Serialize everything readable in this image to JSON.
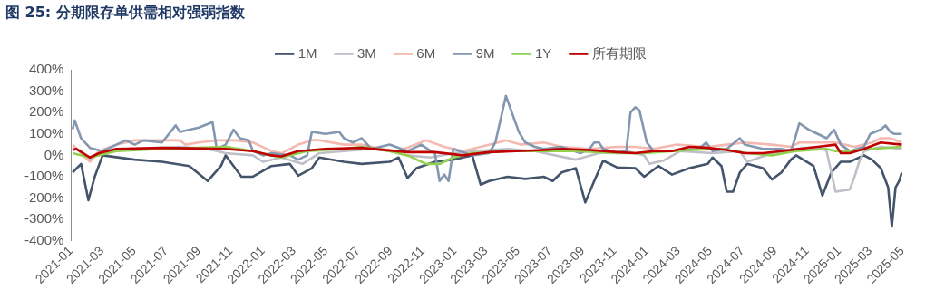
{
  "chart_data": {
    "type": "line",
    "title": "图 25: 分期限存单供需相对强弱指数",
    "legend": "top",
    "grid": false,
    "marker": "none",
    "xlim": [
      "2021-01-01",
      "2025-05-01"
    ],
    "xticks": [
      "2021-01",
      "2021-03",
      "2021-05",
      "2021-07",
      "2021-09",
      "2021-11",
      "2022-01",
      "2022-03",
      "2022-05",
      "2022-07",
      "2022-09",
      "2022-11",
      "2023-01",
      "2023-03",
      "2023-05",
      "2023-07",
      "2023-09",
      "2023-11",
      "2024-01",
      "2024-03",
      "2024-05",
      "2024-07",
      "2024-09",
      "2024-11",
      "2025-01",
      "2025-03",
      "2025-05"
    ],
    "ylim": [
      -400,
      400
    ],
    "yticks": [
      {
        "value": 400,
        "label": "400%"
      },
      {
        "value": 300,
        "label": "300%"
      },
      {
        "value": 200,
        "label": "200%"
      },
      {
        "value": 100,
        "label": "100%"
      },
      {
        "value": 0,
        "label": "0%"
      },
      {
        "value": -100,
        "label": "-100%"
      },
      {
        "value": -200,
        "label": "-200%"
      },
      {
        "value": -300,
        "label": "-300%"
      },
      {
        "value": -400,
        "label": "-400%"
      }
    ],
    "series": [
      {
        "name": "1M",
        "color": "#44546a",
        "x": [
          "2021-01-04",
          "2021-01-20",
          "2021-02-03",
          "2021-02-15",
          "2021-03-02",
          "2021-05-02",
          "2021-06-23",
          "2021-08-14",
          "2021-09-18",
          "2021-10-13",
          "2021-10-22",
          "2021-11-21",
          "2021-12-13",
          "2022-01-17",
          "2022-02-21",
          "2022-03-09",
          "2022-04-04",
          "2022-04-18",
          "2022-06-04",
          "2022-07-08",
          "2022-08-30",
          "2022-09-16",
          "2022-10-03",
          "2022-10-20",
          "2022-11-24",
          "2022-12-29",
          "2023-02-03",
          "2023-02-19",
          "2023-03-07",
          "2023-04-11",
          "2023-05-15",
          "2023-06-19",
          "2023-07-06",
          "2023-07-23",
          "2023-08-19",
          "2023-09-06",
          "2023-09-23",
          "2023-10-10",
          "2023-11-06",
          "2023-12-10",
          "2023-12-27",
          "2024-01-23",
          "2024-02-18",
          "2024-03-22",
          "2024-04-26",
          "2024-05-05",
          "2024-05-22",
          "2024-06-01",
          "2024-06-13",
          "2024-06-26",
          "2024-07-10",
          "2024-08-09",
          "2024-08-26",
          "2024-09-13",
          "2024-10-01",
          "2024-10-11",
          "2024-11-13",
          "2024-11-30",
          "2024-12-17",
          "2025-01-04",
          "2025-01-21",
          "2025-02-17",
          "2025-03-04",
          "2025-03-21",
          "2025-04-04",
          "2025-04-11",
          "2025-04-18",
          "2025-04-25",
          "2025-04-30"
        ],
        "values": [
          -80,
          -40,
          -210,
          -100,
          0,
          -20,
          -30,
          -50,
          -120,
          -50,
          0,
          -100,
          -100,
          -50,
          -40,
          -95,
          -60,
          -10,
          -30,
          -40,
          -30,
          -10,
          -106,
          -60,
          -30,
          -20,
          0,
          -137,
          -120,
          -100,
          -110,
          -100,
          -120,
          -80,
          -60,
          -220,
          -120,
          -25,
          -57,
          -60,
          -100,
          -50,
          -90,
          -60,
          -40,
          -10,
          -50,
          -170,
          -170,
          -80,
          -40,
          -60,
          -113,
          -80,
          -20,
          0,
          -50,
          -188,
          -80,
          -30,
          -30,
          0,
          -20,
          -60,
          -150,
          -333,
          -150,
          -120,
          -80
        ]
      },
      {
        "name": "3M",
        "color": "#bfbfc9",
        "x": [
          "2021-01-04",
          "2021-01-20",
          "2021-02-06",
          "2021-03-02",
          "2021-05-02",
          "2021-07-27",
          "2021-09-18",
          "2021-10-22",
          "2021-12-13",
          "2022-01-01",
          "2022-02-05",
          "2022-03-17",
          "2022-04-18",
          "2022-06-04",
          "2022-07-26",
          "2022-08-30",
          "2022-10-03",
          "2022-11-16",
          "2022-12-29",
          "2023-02-03",
          "2023-04-11",
          "2023-06-02",
          "2023-08-19",
          "2023-10-02",
          "2023-11-23",
          "2023-12-27",
          "2024-01-06",
          "2024-02-01",
          "2024-03-05",
          "2024-05-05",
          "2024-06-26",
          "2024-07-10",
          "2024-08-26",
          "2024-10-09",
          "2024-11-21",
          "2024-12-08",
          "2024-12-25",
          "2025-01-21",
          "2025-01-30",
          "2025-02-08",
          "2025-02-17",
          "2025-03-21",
          "2025-04-30"
        ],
        "values": [
          40,
          20,
          -20,
          20,
          30,
          40,
          30,
          10,
          0,
          -30,
          -10,
          -40,
          10,
          20,
          30,
          20,
          0,
          -10,
          10,
          20,
          30,
          20,
          -20,
          10,
          20,
          0,
          -40,
          -25,
          20,
          10,
          20,
          -30,
          10,
          30,
          40,
          20,
          -170,
          -160,
          -100,
          -30,
          20,
          40,
          30
        ]
      },
      {
        "name": "6M",
        "color": "#f4b9b0",
        "x": [
          "2021-01-04",
          "2021-02-06",
          "2021-02-23",
          "2021-03-28",
          "2021-05-02",
          "2021-06-23",
          "2021-07-27",
          "2021-08-06",
          "2021-09-01",
          "2021-10-05",
          "2021-11-10",
          "2021-12-13",
          "2022-01-17",
          "2022-02-05",
          "2022-03-09",
          "2022-04-04",
          "2022-04-13",
          "2022-06-04",
          "2022-07-08",
          "2022-08-12",
          "2022-09-16",
          "2022-11-07",
          "2022-12-12",
          "2023-01-16",
          "2023-02-19",
          "2023-03-24",
          "2023-04-08",
          "2023-05-06",
          "2023-06-19",
          "2023-07-23",
          "2023-09-14",
          "2023-11-06",
          "2023-12-10",
          "2024-01-14",
          "2024-02-27",
          "2024-04-26",
          "2024-06-01",
          "2024-07-05",
          "2024-08-26",
          "2024-10-01",
          "2024-10-17",
          "2024-11-21",
          "2024-12-25",
          "2025-01-30",
          "2025-03-04",
          "2025-03-21",
          "2025-04-08",
          "2025-04-30"
        ],
        "values": [
          50,
          -30,
          20,
          50,
          70,
          70,
          70,
          50,
          60,
          70,
          70,
          60,
          20,
          10,
          50,
          70,
          73,
          50,
          50,
          30,
          20,
          70,
          40,
          20,
          40,
          60,
          70,
          50,
          60,
          40,
          30,
          40,
          40,
          30,
          50,
          40,
          50,
          60,
          50,
          40,
          60,
          60,
          60,
          40,
          60,
          80,
          80,
          60
        ]
      },
      {
        "name": "9M",
        "color": "#8497b0",
        "x": [
          "2021-01-04",
          "2021-01-08",
          "2021-01-20",
          "2021-02-06",
          "2021-03-02",
          "2021-04-15",
          "2021-05-02",
          "2021-05-19",
          "2021-06-23",
          "2021-07-19",
          "2021-07-27",
          "2021-09-01",
          "2021-09-27",
          "2021-10-05",
          "2021-10-22",
          "2021-11-06",
          "2021-11-18",
          "2021-12-05",
          "2021-12-13",
          "2022-01-01",
          "2022-01-17",
          "2022-02-21",
          "2022-03-09",
          "2022-03-26",
          "2022-04-04",
          "2022-04-30",
          "2022-05-26",
          "2022-06-04",
          "2022-06-21",
          "2022-07-08",
          "2022-07-26",
          "2022-08-12",
          "2022-08-30",
          "2022-10-03",
          "2022-10-29",
          "2022-11-16",
          "2022-11-24",
          "2022-12-03",
          "2022-12-12",
          "2022-12-20",
          "2022-12-29",
          "2023-02-03",
          "2023-03-07",
          "2023-03-19",
          "2023-04-08",
          "2023-05-03",
          "2023-05-15",
          "2023-06-02",
          "2023-06-19",
          "2023-07-23",
          "2023-08-28",
          "2023-09-06",
          "2023-09-14",
          "2023-09-23",
          "2023-10-02",
          "2023-10-10",
          "2023-11-06",
          "2023-11-23",
          "2023-12-01",
          "2023-12-10",
          "2023-12-18",
          "2024-01-01",
          "2024-01-14",
          "2024-02-10",
          "2024-03-05",
          "2024-04-09",
          "2024-04-23",
          "2024-05-05",
          "2024-06-01",
          "2024-06-26",
          "2024-07-05",
          "2024-08-09",
          "2024-09-13",
          "2024-10-01",
          "2024-10-09",
          "2024-10-17",
          "2024-11-04",
          "2024-11-21",
          "2024-12-08",
          "2024-12-22",
          "2025-01-04",
          "2025-01-21",
          "2025-02-17",
          "2025-03-01",
          "2025-03-21",
          "2025-03-30",
          "2025-04-08",
          "2025-04-16",
          "2025-04-30"
        ],
        "values": [
          122,
          163,
          80,
          35,
          20,
          70,
          50,
          70,
          60,
          140,
          110,
          130,
          155,
          30,
          50,
          120,
          80,
          70,
          20,
          0,
          10,
          0,
          -20,
          0,
          110,
          100,
          110,
          80,
          60,
          80,
          30,
          40,
          50,
          20,
          50,
          20,
          10,
          -120,
          -90,
          -120,
          30,
          0,
          10,
          60,
          278,
          107,
          60,
          40,
          30,
          40,
          10,
          20,
          30,
          60,
          60,
          30,
          10,
          20,
          200,
          225,
          210,
          60,
          20,
          20,
          25,
          30,
          60,
          20,
          30,
          80,
          50,
          30,
          30,
          20,
          80,
          150,
          120,
          100,
          80,
          120,
          50,
          20,
          40,
          100,
          120,
          140,
          110,
          100,
          100
        ]
      },
      {
        "name": "1Y",
        "color": "#92d050",
        "x": [
          "2021-01-04",
          "2021-02-06",
          "2021-03-28",
          "2021-06-23",
          "2021-10-22",
          "2021-12-13",
          "2022-01-17",
          "2022-02-05",
          "2022-03-26",
          "2022-06-04",
          "2022-07-08",
          "2022-08-30",
          "2022-10-03",
          "2022-11-07",
          "2022-12-03",
          "2022-12-29",
          "2023-02-03",
          "2023-04-11",
          "2023-06-19",
          "2023-08-19",
          "2023-11-06",
          "2023-12-27",
          "2024-03-22",
          "2024-05-22",
          "2024-07-10",
          "2024-08-26",
          "2024-10-09",
          "2024-12-08",
          "2024-12-25",
          "2025-01-21",
          "2025-03-04",
          "2025-04-30"
        ],
        "values": [
          10,
          -10,
          20,
          30,
          40,
          20,
          0,
          -10,
          20,
          30,
          40,
          20,
          0,
          -40,
          -40,
          -10,
          10,
          20,
          20,
          20,
          10,
          10,
          25,
          30,
          10,
          0,
          20,
          30,
          20,
          20,
          30,
          40
        ]
      },
      {
        "name": "所有期限",
        "color": "#c00000",
        "x": [
          "2021-01-04",
          "2021-01-11",
          "2021-02-06",
          "2021-02-23",
          "2021-03-28",
          "2021-06-23",
          "2021-10-22",
          "2021-12-13",
          "2022-01-17",
          "2022-02-05",
          "2022-03-09",
          "2022-04-04",
          "2022-04-30",
          "2022-07-08",
          "2022-10-03",
          "2022-11-24",
          "2023-01-16",
          "2023-03-07",
          "2023-04-28",
          "2023-06-19",
          "2023-07-23",
          "2023-09-14",
          "2023-11-06",
          "2023-12-10",
          "2024-01-14",
          "2024-02-18",
          "2024-03-22",
          "2024-04-26",
          "2024-06-01",
          "2024-07-05",
          "2024-08-09",
          "2024-09-13",
          "2024-10-17",
          "2024-11-21",
          "2024-12-25",
          "2025-01-04",
          "2025-01-21",
          "2025-02-17",
          "2025-03-21",
          "2025-04-30"
        ],
        "values": [
          25,
          30,
          -10,
          10,
          30,
          35,
          30,
          20,
          0,
          -5,
          20,
          25,
          30,
          35,
          15,
          15,
          0,
          15,
          20,
          25,
          30,
          25,
          15,
          10,
          20,
          20,
          40,
          35,
          25,
          10,
          10,
          20,
          30,
          40,
          50,
          10,
          10,
          30,
          60,
          50
        ]
      }
    ]
  }
}
